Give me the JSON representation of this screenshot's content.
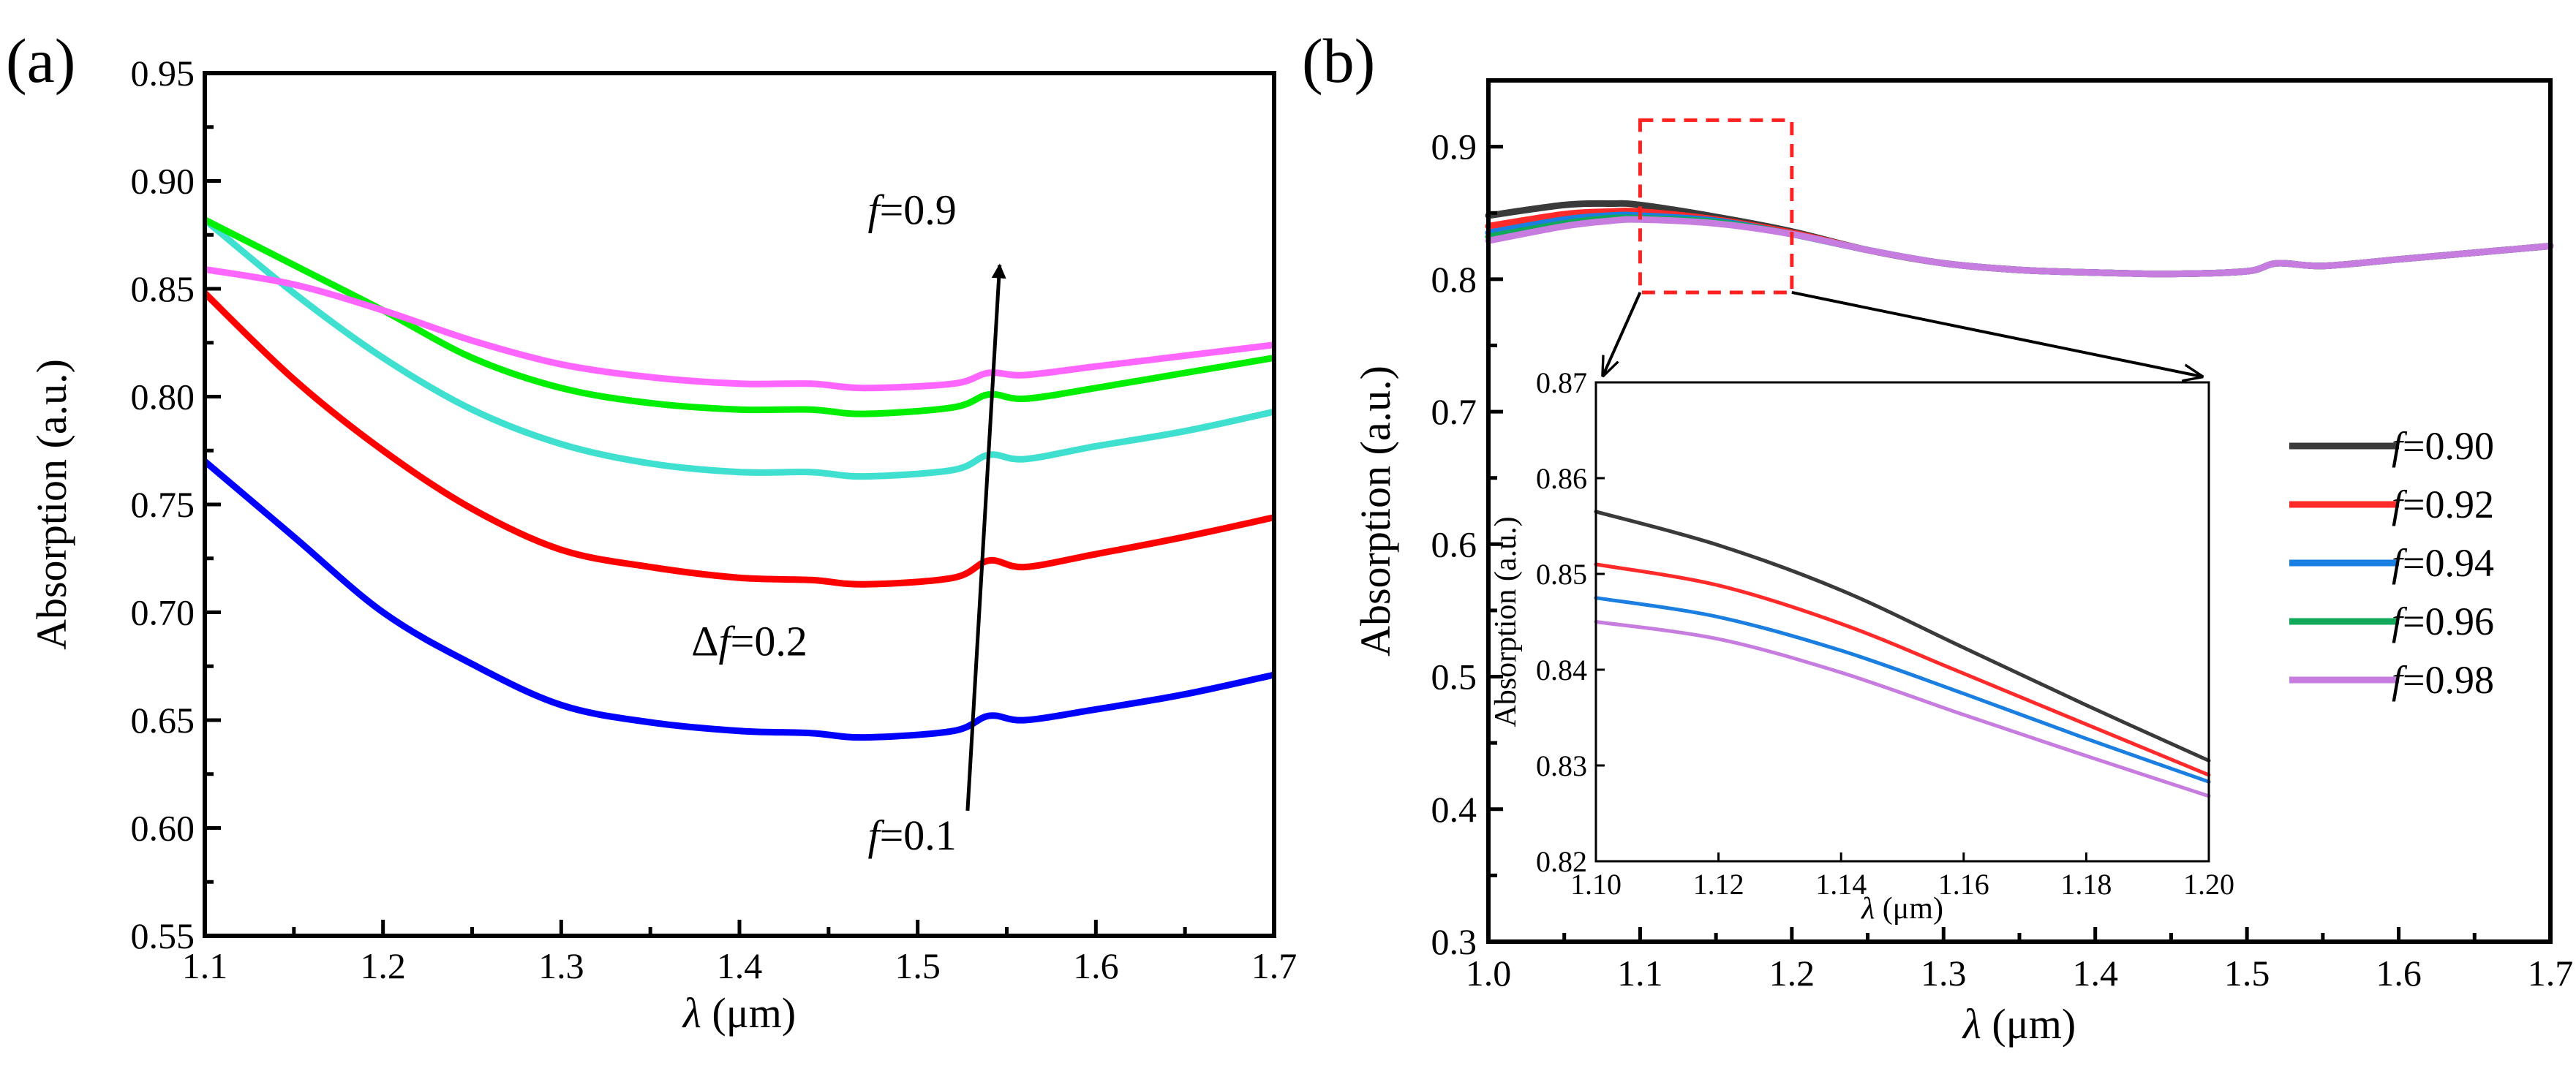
{
  "chart_data": [
    {
      "type": "line",
      "panel_label": "(a)",
      "xlabel": "λ (μm)",
      "ylabel": "Absorption (a.u.)",
      "xlim": [
        1.1,
        1.7
      ],
      "ylim": [
        0.55,
        0.95
      ],
      "xticks": [
        "1.1",
        "1.2",
        "1.3",
        "1.4",
        "1.5",
        "1.6",
        "1.7"
      ],
      "yticks": [
        "0.55",
        "0.60",
        "0.65",
        "0.70",
        "0.75",
        "0.80",
        "0.85",
        "0.90",
        "0.95"
      ],
      "grid": false,
      "x": [
        1.1,
        1.15,
        1.2,
        1.25,
        1.3,
        1.35,
        1.4,
        1.44,
        1.47,
        1.52,
        1.54,
        1.56,
        1.6,
        1.65,
        1.7
      ],
      "series": [
        {
          "color": "#0000ff",
          "values": [
            0.77,
            0.735,
            0.7,
            0.676,
            0.657,
            0.649,
            0.645,
            0.644,
            0.642,
            0.645,
            0.652,
            0.65,
            0.655,
            0.662,
            0.671
          ]
        },
        {
          "color": "#ff0000",
          "values": [
            0.848,
            0.808,
            0.775,
            0.748,
            0.729,
            0.721,
            0.716,
            0.715,
            0.713,
            0.716,
            0.724,
            0.721,
            0.727,
            0.735,
            0.744
          ]
        },
        {
          "color": "#40e0d0",
          "values": [
            0.882,
            0.848,
            0.818,
            0.794,
            0.778,
            0.769,
            0.765,
            0.765,
            0.763,
            0.766,
            0.773,
            0.771,
            0.777,
            0.784,
            0.793
          ]
        },
        {
          "color": "#00ee00",
          "values": [
            0.882,
            0.861,
            0.84,
            0.818,
            0.804,
            0.797,
            0.794,
            0.794,
            0.792,
            0.795,
            0.801,
            0.799,
            0.804,
            0.811,
            0.818
          ]
        },
        {
          "color": "#ff66ff",
          "values": [
            0.859,
            0.852,
            0.84,
            0.826,
            0.815,
            0.809,
            0.806,
            0.806,
            0.804,
            0.806,
            0.811,
            0.81,
            0.814,
            0.819,
            0.824
          ]
        }
      ],
      "annotations": [
        {
          "text": "f=0.9",
          "italic_prefix": "f",
          "rest": "=0.9"
        },
        {
          "text": "Δf=0.2",
          "prefix": "Δ",
          "italic_prefix": "f",
          "rest": "=0.2"
        },
        {
          "text": "f=0.1",
          "italic_prefix": "f",
          "rest": "=0.1"
        }
      ],
      "arrow": {
        "from": [
          1.528,
          0.608
        ],
        "to": [
          1.546,
          0.861
        ]
      }
    },
    {
      "type": "line",
      "panel_label": "(b)",
      "xlabel": "λ (μm)",
      "ylabel": "Absorption (a.u.)",
      "xlim": [
        1.0,
        1.7
      ],
      "ylim": [
        0.3,
        0.95
      ],
      "xticks": [
        "1.0",
        "1.1",
        "1.2",
        "1.3",
        "1.4",
        "1.5",
        "1.6",
        "1.7"
      ],
      "yticks": [
        "0.3",
        "0.4",
        "0.5",
        "0.6",
        "0.7",
        "0.8",
        "0.9"
      ],
      "grid": false,
      "legend_position": "right",
      "x": [
        1.0,
        1.05,
        1.08,
        1.1,
        1.15,
        1.2,
        1.25,
        1.3,
        1.35,
        1.4,
        1.45,
        1.5,
        1.52,
        1.55,
        1.6,
        1.65,
        1.7
      ],
      "series": [
        {
          "name": "f=0.90",
          "italic_prefix": "f",
          "rest": "=0.90",
          "color": "#3a3a3a",
          "values": [
            0.848,
            0.856,
            0.857,
            0.856,
            0.847,
            0.836,
            0.822,
            0.812,
            0.807,
            0.805,
            0.804,
            0.806,
            0.812,
            0.81,
            0.815,
            0.82,
            0.825
          ]
        },
        {
          "name": "f=0.92",
          "italic_prefix": "f",
          "rest": "=0.92",
          "color": "#ff2a2a",
          "values": [
            0.84,
            0.849,
            0.851,
            0.851,
            0.845,
            0.835,
            0.822,
            0.812,
            0.807,
            0.805,
            0.804,
            0.806,
            0.812,
            0.81,
            0.815,
            0.82,
            0.825
          ]
        },
        {
          "name": "f=0.94",
          "italic_prefix": "f",
          "rest": "=0.94",
          "color": "#1a7fe0",
          "values": [
            0.835,
            0.845,
            0.848,
            0.848,
            0.844,
            0.834,
            0.822,
            0.812,
            0.807,
            0.805,
            0.804,
            0.806,
            0.812,
            0.81,
            0.815,
            0.82,
            0.825
          ]
        },
        {
          "name": "f=0.96",
          "italic_prefix": "f",
          "rest": "=0.96",
          "color": "#12a85a",
          "values": [
            0.832,
            0.842,
            0.846,
            0.846,
            0.843,
            0.834,
            0.822,
            0.812,
            0.807,
            0.805,
            0.804,
            0.806,
            0.812,
            0.81,
            0.815,
            0.82,
            0.825
          ]
        },
        {
          "name": "f=0.98",
          "italic_prefix": "f",
          "rest": "=0.98",
          "color": "#c77ddf",
          "values": [
            0.829,
            0.84,
            0.844,
            0.845,
            0.842,
            0.834,
            0.822,
            0.812,
            0.807,
            0.805,
            0.804,
            0.806,
            0.812,
            0.81,
            0.815,
            0.82,
            0.825
          ]
        }
      ],
      "zoom_box": {
        "xlim": [
          1.1,
          1.2
        ],
        "ylim": [
          0.79,
          0.92
        ],
        "style": "red dashed"
      },
      "inset": {
        "type": "line",
        "xlabel": "λ (μm)",
        "ylabel": "Absorption (a.u.)",
        "xlim": [
          1.1,
          1.2
        ],
        "ylim": [
          0.82,
          0.87
        ],
        "xticks": [
          "1.10",
          "1.12",
          "1.14",
          "1.16",
          "1.18",
          "1.20"
        ],
        "yticks": [
          "0.82",
          "0.83",
          "0.84",
          "0.85",
          "0.86",
          "0.87"
        ],
        "x": [
          1.1,
          1.12,
          1.14,
          1.16,
          1.18,
          1.2
        ],
        "series": [
          {
            "name": "f=0.90",
            "color": "#3a3a3a",
            "values": [
              0.8565,
              0.853,
              0.8483,
              0.8423,
              0.8363,
              0.8305
            ]
          },
          {
            "name": "f=0.92",
            "color": "#ff2a2a",
            "values": [
              0.851,
              0.8488,
              0.8448,
              0.8396,
              0.8343,
              0.829
            ]
          },
          {
            "name": "f=0.94",
            "color": "#1a7fe0",
            "values": [
              0.8475,
              0.8455,
              0.842,
              0.8375,
              0.8328,
              0.8283
            ]
          },
          {
            "name": "f=0.98",
            "color": "#c77ddf",
            "values": [
              0.845,
              0.8432,
              0.8397,
              0.8353,
              0.831,
              0.8268
            ]
          }
        ]
      }
    }
  ]
}
